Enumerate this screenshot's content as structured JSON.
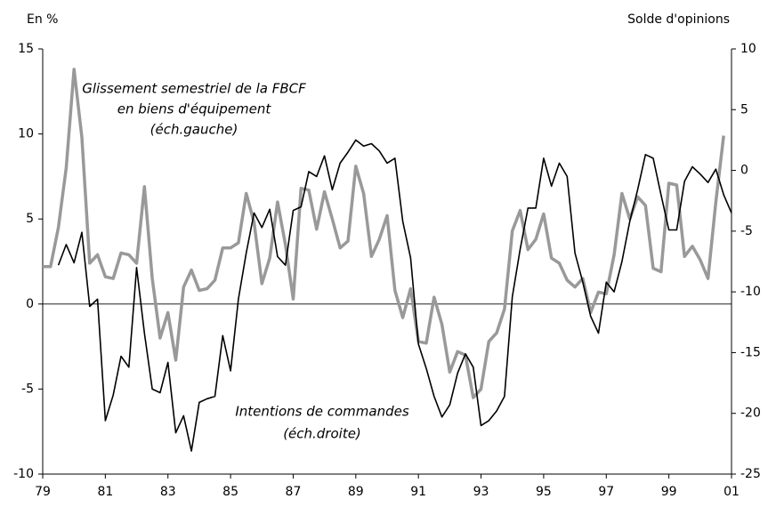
{
  "chart_data": {
    "type": "line",
    "y_axis_label": "En %",
    "y2_axis_label": "Solde d'opinions",
    "annotations": [
      "Glissement semestriel de la FBCF",
      "en biens d'équipement",
      "(éch.gauche)",
      "Intentions de commandes",
      "(éch.droite)"
    ],
    "x": [
      1979,
      1979.25,
      1979.5,
      1979.75,
      1980,
      1980.25,
      1980.5,
      1980.75,
      1981,
      1981.25,
      1981.5,
      1981.75,
      1982,
      1982.25,
      1982.5,
      1982.75,
      1983,
      1983.25,
      1983.5,
      1983.75,
      1984,
      1984.25,
      1984.5,
      1984.75,
      1985,
      1985.25,
      1985.5,
      1985.75,
      1986,
      1986.25,
      1986.5,
      1986.75,
      1987,
      1987.25,
      1987.5,
      1987.75,
      1988,
      1988.25,
      1988.5,
      1988.75,
      1989,
      1989.25,
      1989.5,
      1989.75,
      1990,
      1990.25,
      1990.5,
      1990.75,
      1991,
      1991.25,
      1991.5,
      1991.75,
      1992,
      1992.25,
      1992.5,
      1992.75,
      1993,
      1993.25,
      1993.5,
      1993.75,
      1994,
      1994.25,
      1994.5,
      1994.75,
      1995,
      1995.25,
      1995.5,
      1995.75,
      1996,
      1996.25,
      1996.5,
      1996.75,
      1997,
      1997.25,
      1997.5,
      1997.75,
      1998,
      1998.25,
      1998.5,
      1998.75,
      1999,
      1999.25,
      1999.5,
      1999.75,
      2000,
      2000.25,
      2000.5,
      2000.75,
      2001
    ],
    "series": [
      {
        "name": "Glissement semestriel de la FBCF en biens d'équipement",
        "color": "#999999",
        "axis": "y",
        "values": [
          2.2,
          2.2,
          4.5,
          8.0,
          13.8,
          9.8,
          2.4,
          2.9,
          1.6,
          1.5,
          3.0,
          2.9,
          2.4,
          6.9,
          1.5,
          -2.0,
          -0.5,
          -3.3,
          1.0,
          2.0,
          0.8,
          0.9,
          1.4,
          3.3,
          3.3,
          3.6,
          6.5,
          4.8,
          1.2,
          2.7,
          6.0,
          3.5,
          0.3,
          6.8,
          6.7,
          4.4,
          6.6,
          5.0,
          3.3,
          3.7,
          8.1,
          6.5,
          2.8,
          3.8,
          5.2,
          0.8,
          -0.8,
          0.9,
          -2.2,
          -2.3,
          0.4,
          -1.2,
          -4.0,
          -2.8,
          -3.0,
          -5.5,
          -5.0,
          -2.2,
          -1.7,
          -0.3,
          4.3,
          5.5,
          3.2,
          3.8,
          5.3,
          2.7,
          2.4,
          1.4,
          1.0,
          1.5,
          -0.5,
          0.7,
          0.6,
          2.9,
          6.5,
          5.0,
          6.3,
          5.8,
          2.1,
          1.9,
          7.1,
          7.0,
          2.8,
          3.4,
          2.6,
          1.5,
          6.0,
          9.9,
          null
        ]
      },
      {
        "name": "Intentions de commandes",
        "color": "#000000",
        "axis": "y2",
        "values": [
          null,
          null,
          -7.8,
          -6.1,
          -7.6,
          -5.1,
          -11.2,
          -10.6,
          -20.6,
          -18.5,
          -15.3,
          -16.2,
          -8.0,
          -13.4,
          -18.0,
          -18.3,
          -15.8,
          -21.6,
          -20.2,
          -23.1,
          -19.1,
          -18.8,
          -18.6,
          -13.6,
          -16.5,
          -10.6,
          -6.8,
          -3.5,
          -4.7,
          -3.2,
          -7.1,
          -7.8,
          -3.3,
          -3.0,
          -0.1,
          -0.5,
          1.2,
          -1.6,
          0.6,
          1.5,
          2.5,
          2.0,
          2.2,
          1.6,
          0.6,
          1.0,
          -4.2,
          -7.2,
          -14.3,
          -16.3,
          -18.6,
          -20.3,
          -19.3,
          -16.7,
          -15.1,
          -16.2,
          -21.0,
          -20.6,
          -19.8,
          -18.6,
          -10.4,
          -6.5,
          -3.1,
          -3.1,
          1.0,
          -1.3,
          0.6,
          -0.5,
          -6.8,
          -9.2,
          -12.0,
          -13.4,
          -9.2,
          -10.0,
          -7.5,
          -4.2,
          -1.6,
          1.3,
          1.0,
          -2.0,
          -4.9,
          -4.9,
          -0.9,
          0.3,
          -0.3,
          -1.0,
          0.1,
          -2.0,
          -3.5
        ]
      }
    ],
    "xlim": [
      1979,
      2001
    ],
    "xticks": [
      {
        "value": 1979,
        "label": "79"
      },
      {
        "value": 1981,
        "label": "81"
      },
      {
        "value": 1983,
        "label": "83"
      },
      {
        "value": 1985,
        "label": "85"
      },
      {
        "value": 1987,
        "label": "87"
      },
      {
        "value": 1989,
        "label": "89"
      },
      {
        "value": 1991,
        "label": "91"
      },
      {
        "value": 1993,
        "label": "93"
      },
      {
        "value": 1995,
        "label": "95"
      },
      {
        "value": 1997,
        "label": "97"
      },
      {
        "value": 1999,
        "label": "99"
      },
      {
        "value": 2001,
        "label": "01"
      }
    ],
    "ylim": [
      -10,
      15
    ],
    "yticks": [
      -10,
      -5,
      0,
      5,
      10,
      15
    ],
    "y2lim": [
      -25,
      10
    ],
    "y2ticks": [
      -25,
      -20,
      -15,
      -10,
      -5,
      0,
      5,
      10
    ]
  }
}
